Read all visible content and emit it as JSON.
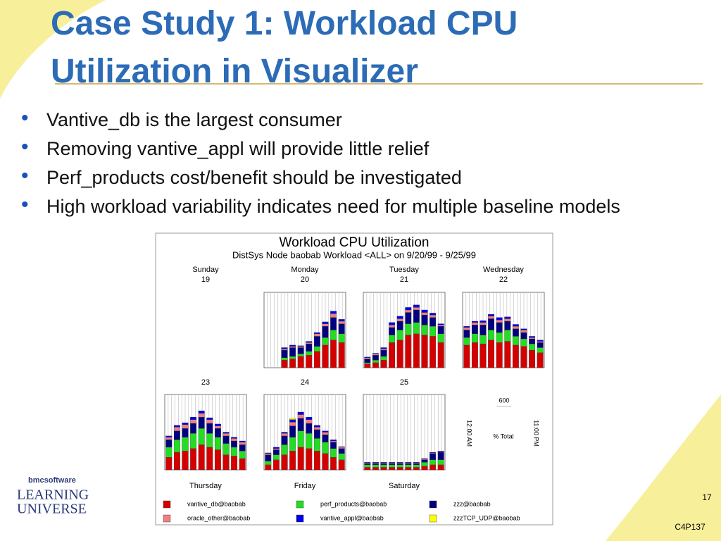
{
  "slide": {
    "title": "Case Study 1: Workload CPU Utilization in Visualizer",
    "bullets": [
      "Vantive_db is the largest consumer",
      "Removing vantive_appl will provide little relief",
      "Perf_products cost/benefit should be investigated",
      "High workload variability indicates need for multiple baseline models"
    ],
    "logo": {
      "brand": "bmcsoftware",
      "line1": "LEARNING",
      "line2": "UNIVERSE"
    },
    "page_number": "17",
    "code": "C4P137"
  },
  "chart_data": {
    "type": "bar",
    "stacked": true,
    "title": "Workload CPU Utilization",
    "subtitle": "DistSys Node baobab Workload <ALL> on 9/20/99 - 9/25/99",
    "panels": [
      {
        "day": "Sunday",
        "date": "19"
      },
      {
        "day": "Monday",
        "date": "20"
      },
      {
        "day": "Tuesday",
        "date": "21"
      },
      {
        "day": "Wednesday",
        "date": "22"
      },
      {
        "day": "Thursday",
        "date": "23"
      },
      {
        "day": "Friday",
        "date": "24"
      },
      {
        "day": "Saturday",
        "date": "25"
      }
    ],
    "x_start": "12:00 AM",
    "x_end": "11:00 PM",
    "ylabel": "% Total",
    "ylim": [
      0,
      600
    ],
    "yticks": [
      600
    ],
    "series": [
      {
        "name": "vantive_db@baobab",
        "color": "#d40000",
        "values": [
          null,
          [
            null,
            null,
            60,
            70,
            90,
            100,
            130,
            180,
            220,
            200
          ],
          [
            30,
            40,
            60,
            200,
            220,
            260,
            270,
            260,
            250,
            200
          ],
          [
            180,
            200,
            190,
            220,
            200,
            210,
            180,
            170,
            140,
            120
          ],
          [
            100,
            140,
            150,
            170,
            200,
            180,
            160,
            120,
            110,
            90
          ],
          [
            40,
            80,
            120,
            150,
            180,
            170,
            150,
            130,
            100,
            80
          ],
          [
            20,
            20,
            20,
            20,
            20,
            20,
            20,
            30,
            40,
            40
          ]
        ]
      },
      {
        "name": "perf_products@baobab",
        "color": "#22dd22",
        "values": [
          null,
          [
            null,
            null,
            20,
            20,
            20,
            30,
            40,
            60,
            80,
            70
          ],
          [
            10,
            20,
            30,
            60,
            80,
            90,
            90,
            80,
            80,
            70
          ],
          [
            60,
            70,
            70,
            80,
            80,
            90,
            70,
            60,
            50,
            40
          ],
          [
            80,
            100,
            110,
            120,
            130,
            110,
            100,
            90,
            70,
            60
          ],
          [
            30,
            40,
            80,
            110,
            130,
            120,
            100,
            90,
            70,
            50
          ],
          [
            20,
            20,
            20,
            20,
            20,
            20,
            20,
            30,
            40,
            40
          ]
        ]
      },
      {
        "name": "zzz@baobab",
        "color": "#000080",
        "values": [
          null,
          [
            null,
            null,
            60,
            70,
            50,
            60,
            80,
            90,
            100,
            80
          ],
          [
            30,
            40,
            50,
            60,
            70,
            90,
            100,
            80,
            70,
            60
          ],
          [
            60,
            70,
            80,
            90,
            80,
            70,
            60,
            50,
            40,
            40
          ],
          [
            60,
            70,
            70,
            80,
            90,
            80,
            70,
            60,
            50,
            50
          ],
          [
            50,
            40,
            70,
            90,
            100,
            80,
            70,
            60,
            50,
            40
          ],
          [
            10,
            10,
            10,
            10,
            10,
            10,
            10,
            20,
            50,
            60
          ]
        ]
      },
      {
        "name": "oracle_other@baobab",
        "color": "#f08080",
        "values": [
          null,
          [
            null,
            null,
            10,
            10,
            10,
            10,
            20,
            20,
            30,
            20
          ],
          [
            10,
            10,
            10,
            20,
            20,
            20,
            20,
            20,
            20,
            10
          ],
          [
            20,
            20,
            20,
            20,
            20,
            20,
            20,
            20,
            10,
            10
          ],
          [
            20,
            30,
            30,
            30,
            30,
            30,
            20,
            20,
            20,
            20
          ],
          [
            10,
            10,
            20,
            30,
            30,
            30,
            20,
            20,
            10,
            10
          ],
          [
            5,
            5,
            5,
            5,
            5,
            5,
            5,
            5,
            5,
            5
          ]
        ]
      },
      {
        "name": "vantive_appl@baobab",
        "color": "#0000ee",
        "values": [
          null,
          [
            null,
            null,
            10,
            10,
            5,
            10,
            10,
            15,
            20,
            15
          ],
          [
            5,
            5,
            10,
            20,
            20,
            20,
            20,
            20,
            15,
            10
          ],
          [
            10,
            10,
            15,
            15,
            20,
            15,
            15,
            10,
            10,
            10
          ],
          [
            10,
            15,
            15,
            20,
            20,
            15,
            15,
            10,
            10,
            10
          ],
          [
            5,
            10,
            10,
            20,
            20,
            20,
            15,
            10,
            10,
            5
          ],
          [
            5,
            5,
            5,
            5,
            5,
            5,
            5,
            5,
            5,
            5
          ]
        ]
      },
      {
        "name": "zzzTCP_UDP@baobab",
        "color": "#ffff00",
        "values": [
          null,
          [
            null,
            null,
            0,
            0,
            0,
            0,
            0,
            0,
            0,
            0
          ],
          [
            0,
            0,
            0,
            0,
            0,
            0,
            0,
            0,
            0,
            0
          ],
          [
            0,
            0,
            0,
            0,
            0,
            0,
            0,
            0,
            0,
            0
          ],
          [
            0,
            0,
            0,
            0,
            0,
            0,
            0,
            0,
            0,
            0
          ],
          [
            0,
            0,
            0,
            10,
            0,
            0,
            0,
            0,
            0,
            0
          ],
          [
            0,
            0,
            0,
            0,
            0,
            0,
            0,
            0,
            0,
            0
          ]
        ]
      }
    ]
  }
}
